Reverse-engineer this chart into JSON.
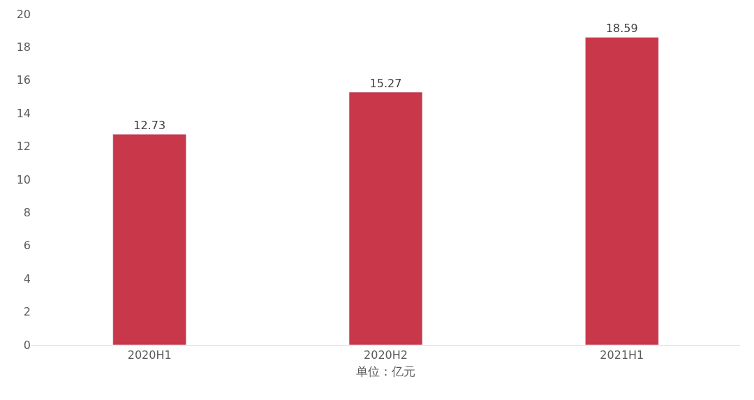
{
  "chart_data": {
    "type": "bar",
    "categories": [
      "2020H1",
      "2020H2",
      "2021H1"
    ],
    "values": [
      12.73,
      15.27,
      18.59
    ],
    "color": "#c8374a",
    "xlabel": "单位：亿元",
    "ylim": [
      0,
      20
    ],
    "yticks": [
      0,
      2,
      4,
      6,
      8,
      10,
      12,
      14,
      16,
      18,
      20
    ],
    "data_labels": true
  }
}
